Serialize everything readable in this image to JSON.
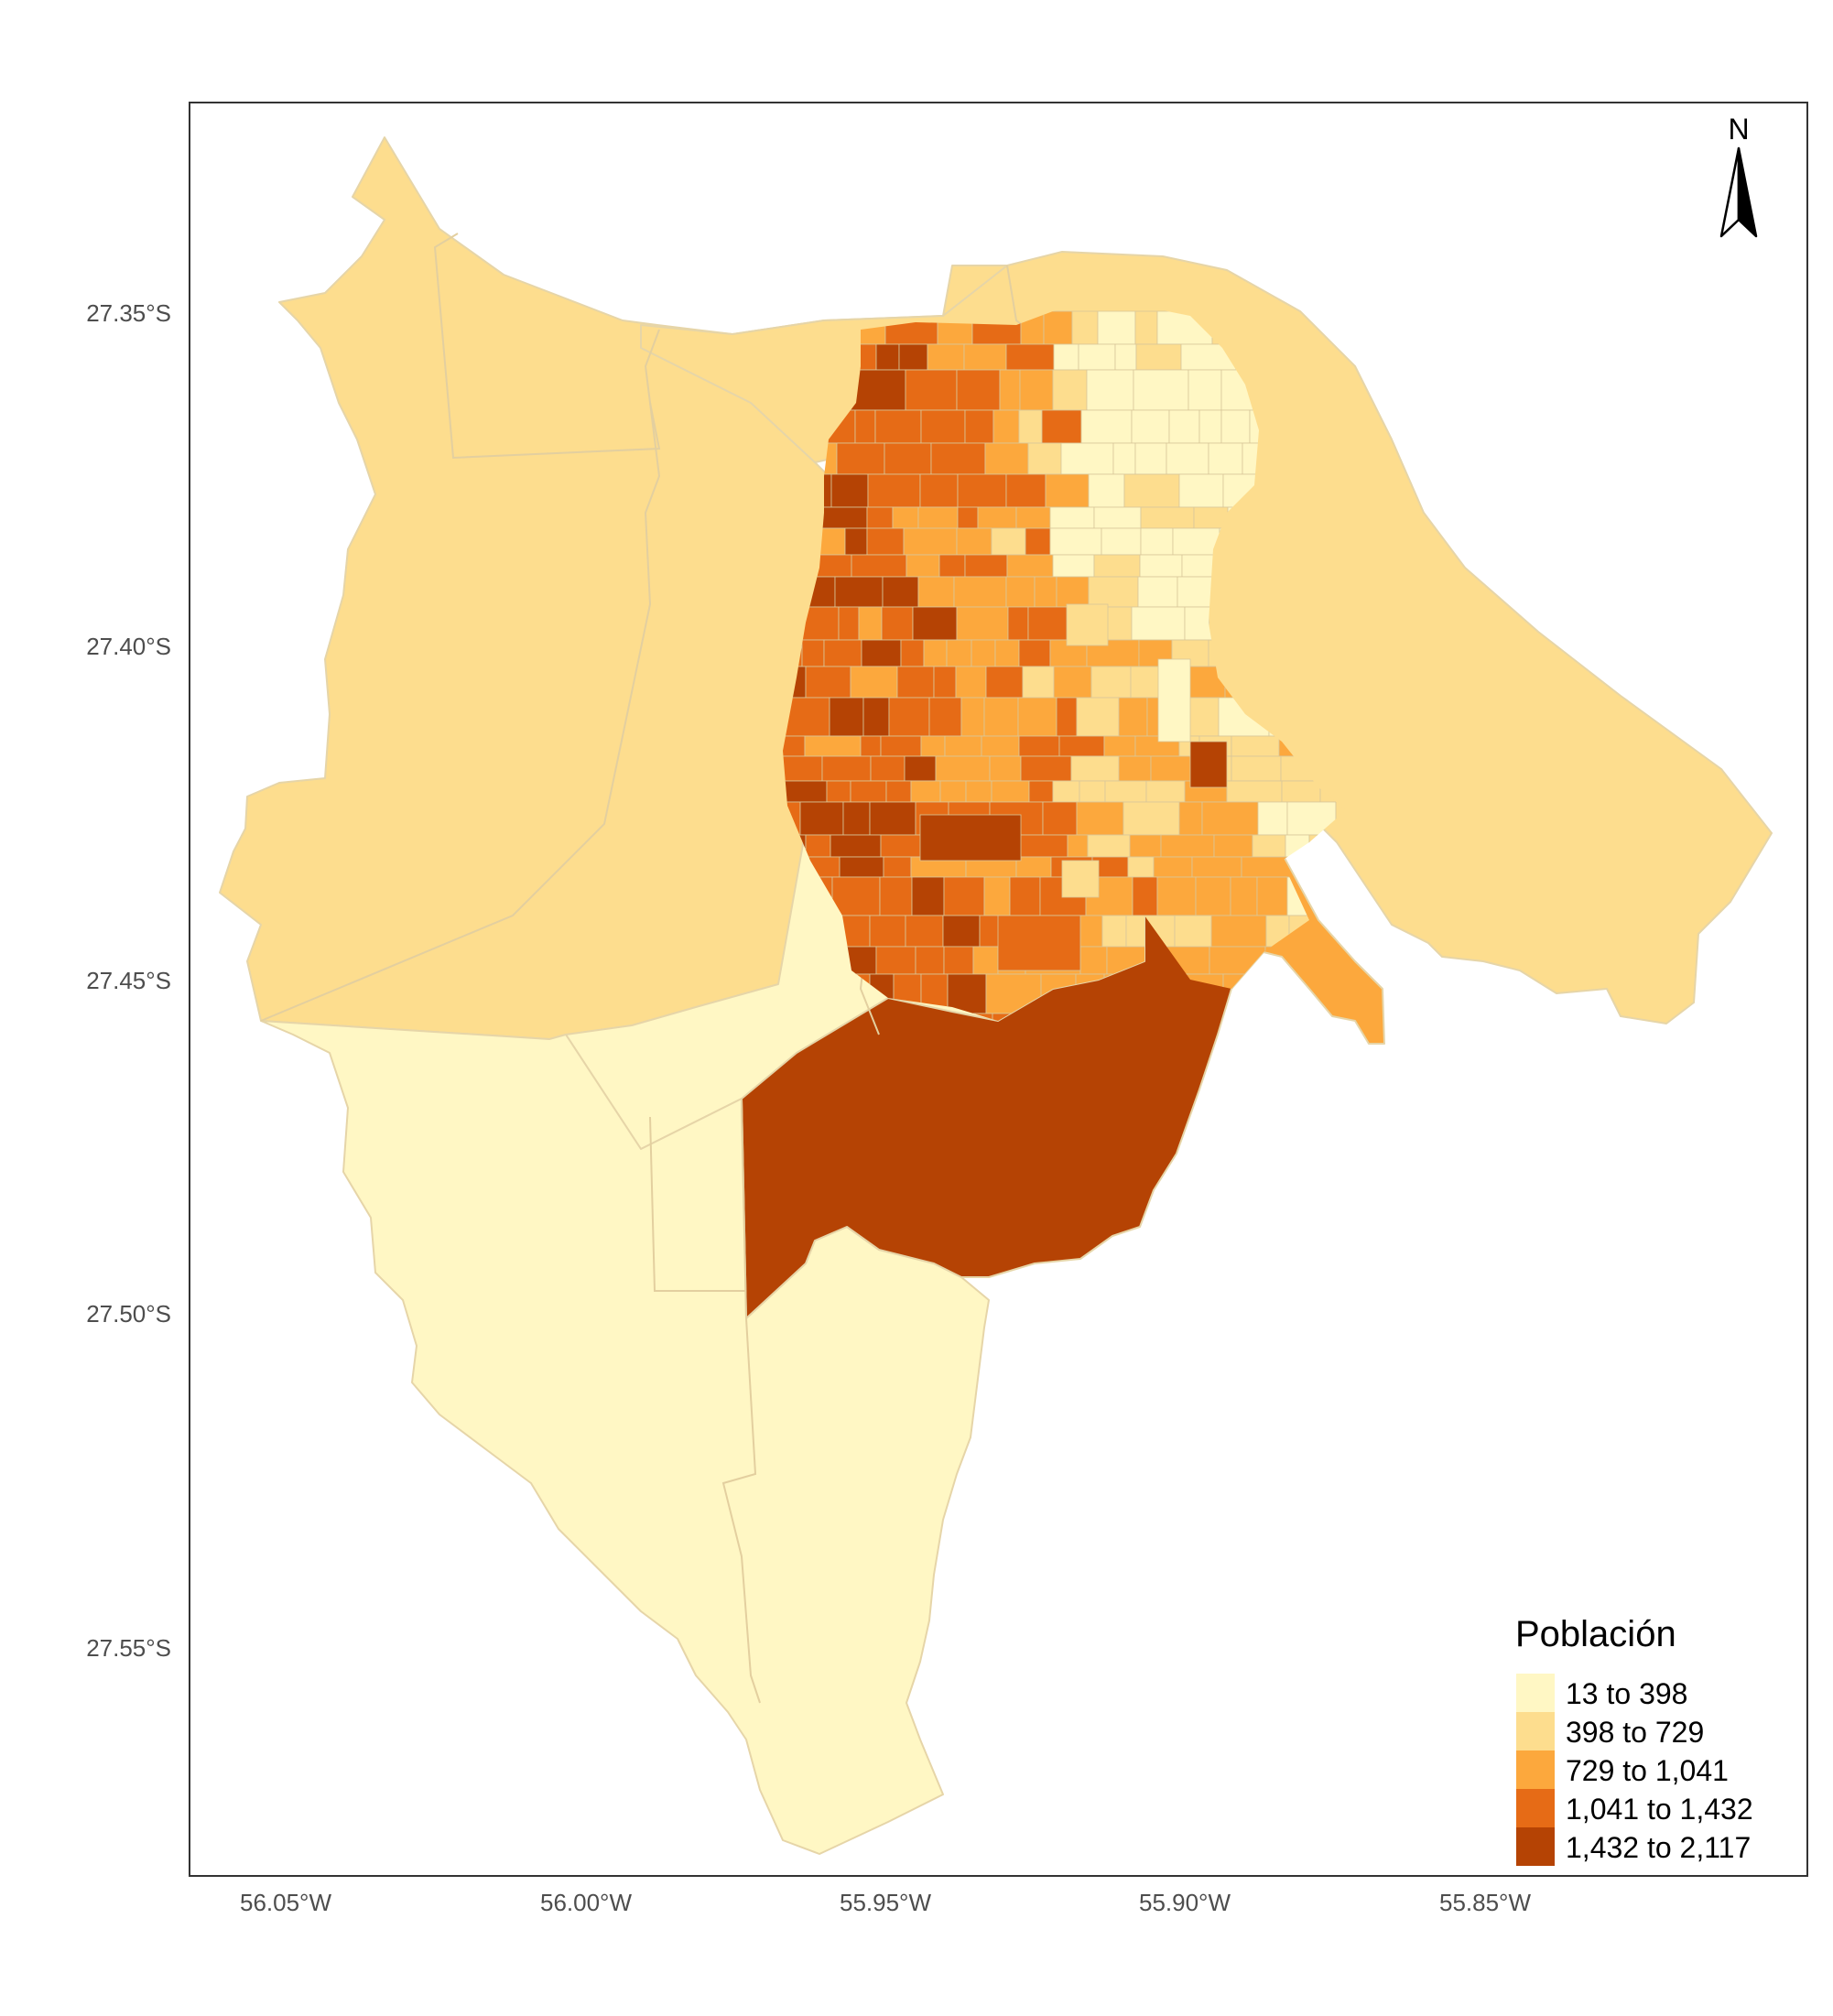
{
  "map": {
    "x_ticks": [
      "56.05°W",
      "56.00°W",
      "55.95°W",
      "55.90°W",
      "55.85°W"
    ],
    "y_ticks": [
      "27.35°S",
      "27.40°S",
      "27.45°S",
      "27.50°S",
      "27.55°S"
    ],
    "north_label": "N",
    "legend": {
      "title": "Población",
      "items": [
        {
          "label": "13 to 398",
          "color": "#FFF7C4"
        },
        {
          "label": "398 to 729",
          "color": "#FDDD8E"
        },
        {
          "label": "729 to 1,041",
          "color": "#FCA83D"
        },
        {
          "label": "1,041 to 1,432",
          "color": "#E66B16"
        },
        {
          "label": "1,432 to 2,117",
          "color": "#B54304"
        }
      ]
    }
  }
}
